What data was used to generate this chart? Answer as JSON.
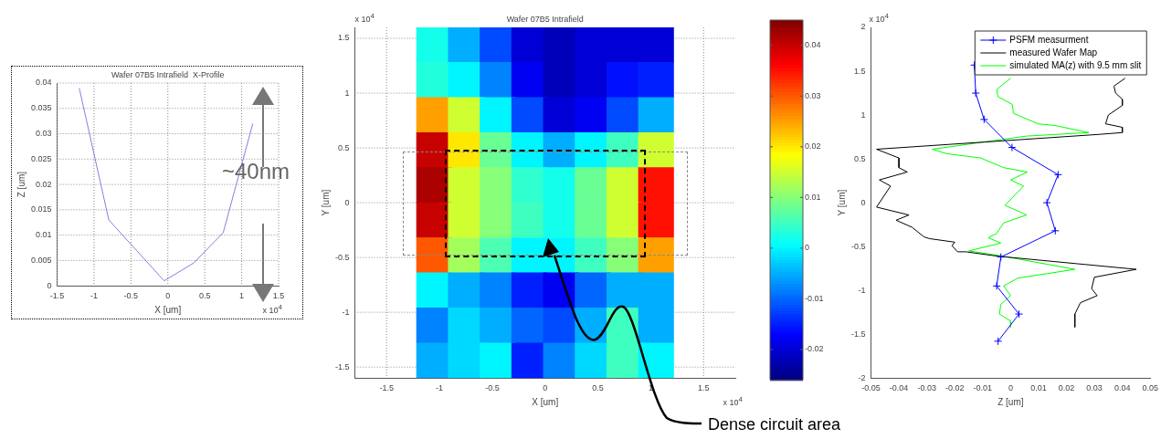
{
  "chart_data": [
    {
      "type": "line",
      "title": "Wafer 07B5 Intrafield  X-Profile",
      "xlabel": "X [um]",
      "ylabel": "Z [um]",
      "x": [
        -1.2,
        -0.8,
        -0.05,
        0.35,
        0.75,
        1.15
      ],
      "series": [
        {
          "color": "#8080e0",
          "values": [
            0.039,
            0.013,
            0.001,
            0.0045,
            0.0105,
            0.032
          ]
        }
      ],
      "xlim": [
        -1.5,
        1.5
      ],
      "xticks": [
        -1.5,
        -1,
        -0.5,
        0,
        0.5,
        1,
        1.5
      ],
      "ylim": [
        0,
        0.04
      ],
      "yticks": [
        0,
        0.005,
        0.01,
        0.015,
        0.02,
        0.025,
        0.03,
        0.035,
        0.04
      ],
      "grid": true,
      "marker": "none",
      "annotations": [
        "x 10$^{4}$",
        "~40nm"
      ]
    },
    {
      "type": "scatter",
      "title": "Wafer 07B5 Intrafield",
      "xlabel": "X [um]",
      "ylabel": "Y [um]",
      "marker": "square",
      "x": [
        -1.05,
        -0.75,
        -0.45,
        -0.15,
        0.15,
        0.45,
        0.75,
        1.05,
        -1.05,
        -0.75,
        -0.45,
        -0.15,
        0.15,
        0.45,
        0.75,
        1.05,
        -1.05,
        -0.75,
        -0.45,
        -0.15,
        0.15,
        0.45,
        0.75,
        1.05,
        -1.05,
        -0.75,
        -0.45,
        -0.15,
        0.15,
        0.45,
        0.75,
        1.05,
        -1.05,
        -0.75,
        -0.45,
        -0.15,
        0.15,
        0.45,
        0.75,
        1.05,
        -1.05,
        -0.75,
        -0.45,
        -0.15,
        0.15,
        0.45,
        0.75,
        1.05,
        -1.05,
        -0.75,
        -0.45,
        -0.15,
        0.15,
        0.45,
        0.75,
        1.05,
        -1.05,
        -0.75,
        -0.45,
        -0.15,
        0.15,
        0.45,
        0.75,
        1.05,
        -1.05,
        -0.75,
        -0.45,
        -0.15,
        0.15,
        0.45,
        0.75,
        1.05,
        -1.05,
        -0.75,
        -0.45,
        -0.15,
        0.15,
        0.45,
        0.75,
        1.05
      ],
      "values": [
        1.44,
        1.44,
        1.44,
        1.44,
        1.44,
        1.44,
        1.44,
        1.44,
        1.12,
        1.12,
        1.12,
        1.12,
        1.12,
        1.12,
        1.12,
        1.12,
        0.8,
        0.8,
        0.8,
        0.8,
        0.8,
        0.8,
        0.8,
        0.8,
        0.48,
        0.48,
        0.48,
        0.48,
        0.48,
        0.48,
        0.48,
        0.48,
        0.16,
        0.16,
        0.16,
        0.16,
        0.16,
        0.16,
        0.16,
        0.16,
        -0.16,
        -0.16,
        -0.16,
        -0.16,
        -0.16,
        -0.16,
        -0.16,
        -0.16,
        -0.48,
        -0.48,
        -0.48,
        -0.48,
        -0.48,
        -0.48,
        -0.48,
        -0.48,
        -0.8,
        -0.8,
        -0.8,
        -0.8,
        -0.8,
        -0.8,
        -0.8,
        -0.8,
        -1.12,
        -1.12,
        -1.12,
        -1.12,
        -1.12,
        -1.12,
        -1.12,
        -1.12,
        -1.44,
        -1.44,
        -1.44,
        -1.44,
        -1.44,
        -1.44,
        -1.44,
        -1.44
      ],
      "cvalues": [
        0.002,
        -0.005,
        -0.012,
        -0.02,
        -0.022,
        -0.02,
        -0.02,
        -0.02,
        0.003,
        0,
        -0.008,
        -0.018,
        -0.022,
        -0.02,
        -0.016,
        -0.015,
        0.025,
        0.015,
        0,
        -0.012,
        -0.02,
        -0.018,
        -0.012,
        -0.005,
        0.04,
        0.02,
        0.008,
        0,
        -0.005,
        0,
        0.005,
        0.015,
        0.042,
        0.015,
        0.01,
        0.004,
        0.002,
        0.008,
        0.015,
        0.035,
        0.04,
        0.015,
        0.01,
        0.005,
        0.002,
        0.008,
        0.015,
        0.035,
        0.03,
        0.012,
        0.006,
        0,
        0,
        0.005,
        0.01,
        0.025,
        0,
        -0.005,
        -0.008,
        -0.015,
        -0.018,
        -0.01,
        -0.005,
        -0.005,
        -0.008,
        -0.002,
        -0.005,
        -0.01,
        -0.012,
        -0.005,
        0.005,
        -0.005,
        -0.005,
        -0.002,
        0,
        -0.015,
        -0.008,
        -0.002,
        0.005,
        0
      ],
      "clim": [
        -0.026,
        0.045
      ],
      "cticks": [
        -0.02,
        -0.01,
        0,
        0.01,
        0.02,
        0.03,
        0.04
      ],
      "xlim": [
        -1.8,
        1.8
      ],
      "xticks": [
        -1.5,
        -1,
        -0.5,
        0,
        0.5,
        1,
        1.5
      ],
      "ylim": [
        -1.6,
        1.6
      ],
      "yticks": [
        -1.5,
        -1,
        -0.5,
        0,
        0.5,
        1,
        1.5
      ],
      "grid": true,
      "annotations": [
        "x 10$^{4}$",
        "x 10$^{4}$",
        "Dense circuit area"
      ]
    },
    {
      "type": "line",
      "xlabel": "Z [um]",
      "ylabel": "Y [um]",
      "legend": "top right",
      "series": [
        {
          "name": "PSFM measurment",
          "color": "#0000ff",
          "marker": "cross",
          "x": [
            -0.013,
            -0.0125,
            -0.0095,
            0.0005,
            0.017,
            0.013,
            0.016,
            -0.0035,
            -0.005,
            0.003,
            -0.0045
          ],
          "values": [
            1.57,
            1.25,
            0.95,
            0.63,
            0.32,
            0,
            -0.32,
            -0.62,
            -0.95,
            -1.27,
            -1.58
          ]
        },
        {
          "name": "measured Wafer Map",
          "color": "#000000",
          "marker": "none",
          "x": [
            0.041,
            0.037,
            0.0376,
            0.04,
            0.04,
            0.035,
            0.034,
            0.04,
            0.04,
            0.032,
            -0.048,
            -0.04,
            -0.04,
            -0.037,
            -0.047,
            -0.043,
            -0.048,
            -0.0364,
            -0.041,
            -0.0353,
            -0.031,
            -0.029,
            -0.02,
            -0.021,
            -0.019,
            -0.016,
            -0.0046,
            0.045,
            0.03,
            0.029,
            0.031,
            0.025,
            0.023,
            0.023
          ],
          "values": [
            1.42,
            1.33,
            1.25,
            1.18,
            1.11,
            1,
            0.9,
            0.86,
            0.8,
            0.78,
            0.61,
            0.51,
            0.4,
            0.35,
            0.26,
            0.19,
            -0.05,
            -0.14,
            -0.2,
            -0.28,
            -0.39,
            -0.41,
            -0.45,
            -0.49,
            -0.56,
            -0.56,
            -0.61,
            -0.76,
            -0.85,
            -0.98,
            -1.06,
            -1.14,
            -1.27,
            -1.42
          ]
        },
        {
          "name": "simulated MA(z) with 9.5 mm slit",
          "color": "#00ff00",
          "marker": "none",
          "x": [
            0,
            -0.005,
            -0.0045,
            0.0006,
            0.001,
            0.0098,
            0.016,
            0.028,
            0.0057,
            -0.028,
            -0.023,
            -0.0107,
            -0.0025,
            0.006,
            0,
            0.0046,
            -0.002,
            0.0057,
            -0.0025,
            -0.005,
            -0.008,
            -0.0035,
            -0.015,
            -0.0046,
            0.023,
            0.0026,
            -0.0025,
            0,
            -0.0035,
            -0.004,
            0,
            0
          ],
          "values": [
            1.42,
            1.29,
            1.21,
            1.12,
            1.02,
            0.9,
            0.88,
            0.8,
            0.76,
            0.61,
            0.56,
            0.51,
            0.4,
            0.35,
            0.26,
            0.19,
            -0.03,
            -0.14,
            -0.23,
            -0.35,
            -0.4,
            -0.46,
            -0.55,
            -0.6,
            -0.76,
            -0.86,
            -0.95,
            -1.06,
            -1.16,
            -1.27,
            -1.35,
            -1.42
          ]
        }
      ],
      "xlim": [
        -0.05,
        0.05
      ],
      "xticks": [
        -0.05,
        -0.04,
        -0.03,
        -0.02,
        -0.01,
        0,
        0.01,
        0.02,
        0.03,
        0.04,
        0.05
      ],
      "ylim": [
        -2,
        2
      ],
      "yticks": [
        -2,
        -1.5,
        -1,
        -0.5,
        0,
        0.5,
        1,
        1.5,
        2
      ],
      "annotations": [
        "x 10$^{4}$"
      ]
    }
  ]
}
